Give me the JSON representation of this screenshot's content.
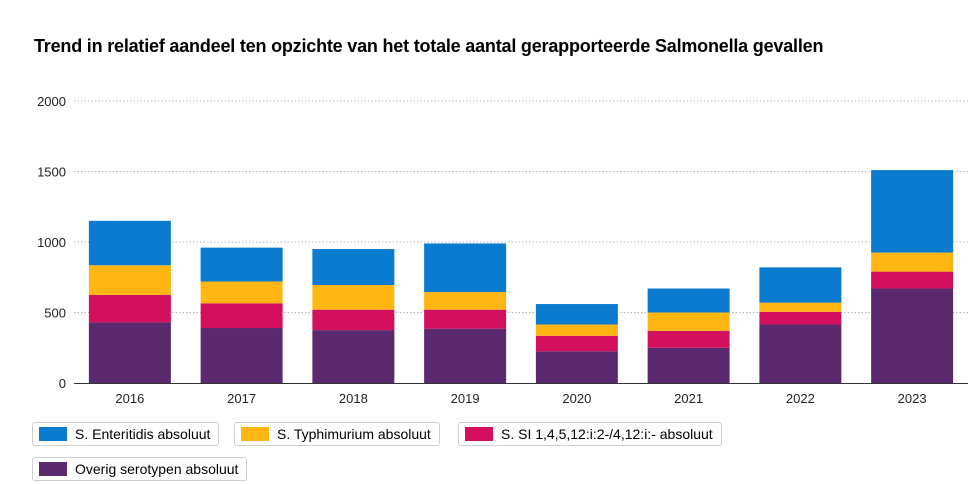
{
  "chart_data": {
    "type": "bar",
    "stacked": true,
    "title": "Trend in relatief aandeel ten opzichte van het totale aantal gerapporteerde Salmonella gevallen",
    "xlabel": "",
    "ylabel": "",
    "ylim": [
      0,
      2000
    ],
    "yticks": [
      "0",
      "500",
      "1000",
      "1500",
      "2000"
    ],
    "grid": true,
    "legend_position": "bottom",
    "categories": [
      "2016",
      "2017",
      "2018",
      "2019",
      "2020",
      "2021",
      "2022",
      "2023"
    ],
    "series": [
      {
        "name": "Overig serotypen absoluut",
        "color": "#5b2a6e",
        "values": [
          430,
          390,
          375,
          385,
          225,
          250,
          415,
          670
        ]
      },
      {
        "name": "S. SI 1,4,5,12:i:2-/4,12:i:- absoluut",
        "color": "#d40f5e",
        "values": [
          195,
          175,
          145,
          135,
          110,
          120,
          90,
          120
        ]
      },
      {
        "name": "S. Typhimurium absoluut",
        "color": "#ffb612",
        "values": [
          210,
          155,
          175,
          125,
          80,
          130,
          65,
          135
        ]
      },
      {
        "name": "S. Enteritidis absoluut",
        "color": "#0b7bd0",
        "values": [
          315,
          240,
          255,
          345,
          145,
          170,
          250,
          585
        ]
      }
    ]
  },
  "legend": {
    "items": [
      {
        "label": "S. Enteritidis absoluut",
        "color": "#0b7bd0"
      },
      {
        "label": "S. Typhimurium absoluut",
        "color": "#ffb612"
      },
      {
        "label": "S. SI 1,4,5,12:i:2-/4,12:i:- absoluut",
        "color": "#d40f5e"
      },
      {
        "label": "Overig serotypen absoluut",
        "color": "#5b2a6e"
      }
    ]
  }
}
